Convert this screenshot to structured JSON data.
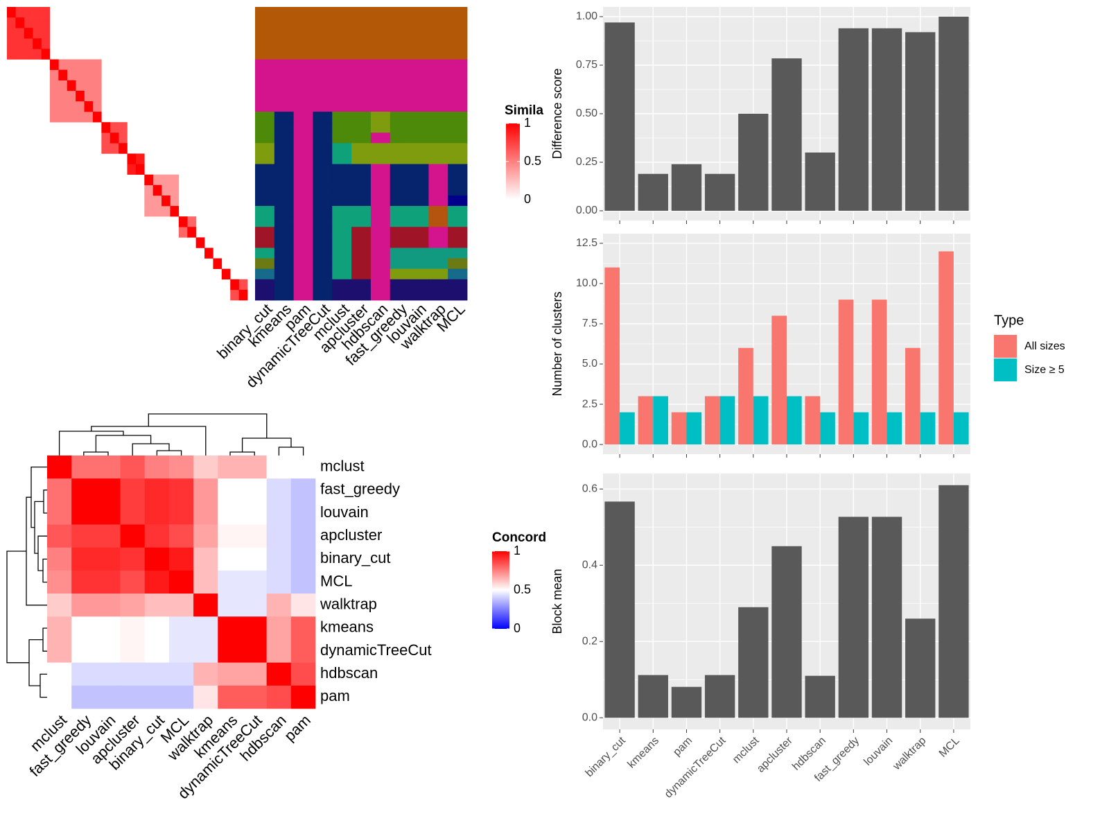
{
  "chart_data": [
    {
      "type": "similarity_heatmap",
      "size": 28,
      "diagonal": 1,
      "blocks": [
        {
          "start": 0,
          "end": 4,
          "value": 0.8
        },
        {
          "start": 5,
          "end": 10,
          "value": 0.5
        },
        {
          "start": 11,
          "end": 13,
          "value": 0.7
        },
        {
          "start": 14,
          "end": 15,
          "value": 0.9
        },
        {
          "start": 16,
          "end": 19,
          "value": 0.4
        },
        {
          "start": 20,
          "end": 21,
          "value": 0.6
        },
        {
          "start": 26,
          "end": 27,
          "value": 0.7
        }
      ],
      "colors": [
        "#ffffff",
        "#ff0000"
      ],
      "legend_title": "Simila",
      "legend_ticks": [
        1,
        0.5,
        0
      ]
    },
    {
      "type": "cluster_matrix",
      "methods": [
        "binary_cut",
        "kmeans",
        "pam",
        "dynamicTreeCut",
        "mclust",
        "apcluster",
        "hdbscan",
        "fast_greedy",
        "louvain",
        "walktrap",
        "MCL"
      ],
      "palette": [
        "#b35806",
        "#d4148c",
        "#4d8a0a",
        "#06236e",
        "#7f9c0e",
        "#0fa27a",
        "#00008b",
        "#b5540e",
        "#a01428",
        "#129a80",
        "#6b7a12",
        "#176b8a",
        "#1d0f6e"
      ],
      "rows": [
        [
          0,
          0,
          0,
          0,
          0,
          0,
          0,
          0,
          0,
          0,
          0
        ],
        [
          0,
          0,
          0,
          0,
          0,
          0,
          0,
          0,
          0,
          0,
          0
        ],
        [
          0,
          0,
          0,
          0,
          0,
          0,
          0,
          0,
          0,
          0,
          0
        ],
        [
          0,
          0,
          0,
          0,
          0,
          0,
          0,
          0,
          0,
          0,
          0
        ],
        [
          0,
          0,
          0,
          0,
          0,
          0,
          0,
          0,
          0,
          0,
          0
        ],
        [
          1,
          1,
          1,
          1,
          1,
          1,
          1,
          1,
          1,
          1,
          1
        ],
        [
          1,
          1,
          1,
          1,
          1,
          1,
          1,
          1,
          1,
          1,
          1
        ],
        [
          1,
          1,
          1,
          1,
          1,
          1,
          1,
          1,
          1,
          1,
          1
        ],
        [
          1,
          1,
          1,
          1,
          1,
          1,
          1,
          1,
          1,
          1,
          1
        ],
        [
          1,
          1,
          1,
          1,
          1,
          1,
          1,
          1,
          1,
          1,
          1
        ],
        [
          2,
          3,
          1,
          3,
          2,
          2,
          4,
          2,
          2,
          2,
          2
        ],
        [
          2,
          3,
          1,
          3,
          2,
          2,
          4,
          2,
          2,
          2,
          2
        ],
        [
          2,
          3,
          1,
          3,
          2,
          2,
          1,
          2,
          2,
          2,
          2
        ],
        [
          4,
          3,
          1,
          3,
          5,
          4,
          4,
          4,
          4,
          4,
          4
        ],
        [
          4,
          3,
          1,
          3,
          5,
          4,
          4,
          4,
          4,
          4,
          4
        ],
        [
          3,
          3,
          1,
          3,
          3,
          3,
          1,
          3,
          3,
          1,
          3
        ],
        [
          3,
          3,
          1,
          3,
          3,
          3,
          1,
          3,
          3,
          1,
          3
        ],
        [
          3,
          3,
          1,
          3,
          3,
          3,
          1,
          3,
          3,
          1,
          3
        ],
        [
          3,
          3,
          1,
          3,
          3,
          3,
          1,
          3,
          3,
          1,
          6
        ],
        [
          5,
          3,
          1,
          3,
          5,
          5,
          1,
          5,
          5,
          7,
          5
        ],
        [
          5,
          3,
          1,
          3,
          5,
          5,
          1,
          5,
          5,
          7,
          5
        ],
        [
          8,
          3,
          1,
          3,
          5,
          8,
          1,
          8,
          8,
          1,
          8
        ],
        [
          8,
          3,
          1,
          3,
          5,
          8,
          1,
          8,
          8,
          1,
          8
        ],
        [
          5,
          3,
          1,
          3,
          5,
          8,
          1,
          9,
          9,
          9,
          9
        ],
        [
          10,
          3,
          1,
          3,
          5,
          8,
          1,
          9,
          9,
          9,
          10
        ],
        [
          11,
          3,
          1,
          3,
          5,
          8,
          1,
          4,
          4,
          4,
          11
        ],
        [
          12,
          3,
          1,
          3,
          12,
          12,
          1,
          12,
          12,
          12,
          12
        ],
        [
          12,
          3,
          1,
          3,
          12,
          12,
          1,
          12,
          12,
          12,
          12
        ]
      ]
    },
    {
      "type": "concordance_heatmap",
      "labels": [
        "mclust",
        "fast_greedy",
        "louvain",
        "apcluster",
        "binary_cut",
        "MCL",
        "walktrap",
        "kmeans",
        "dynamicTreeCut",
        "hdbscan",
        "pam"
      ],
      "values": [
        [
          1,
          0.78,
          0.78,
          0.83,
          0.75,
          0.72,
          0.6,
          0.65,
          0.65,
          0.5,
          0.5
        ],
        [
          0.78,
          1,
          1,
          0.88,
          0.92,
          0.9,
          0.7,
          0.5,
          0.5,
          0.43,
          0.38
        ],
        [
          0.78,
          1,
          1,
          0.88,
          0.92,
          0.9,
          0.7,
          0.5,
          0.5,
          0.43,
          0.38
        ],
        [
          0.83,
          0.88,
          0.88,
          1,
          0.9,
          0.85,
          0.68,
          0.52,
          0.52,
          0.43,
          0.38
        ],
        [
          0.75,
          0.92,
          0.92,
          0.9,
          1,
          0.95,
          0.63,
          0.5,
          0.5,
          0.43,
          0.38
        ],
        [
          0.72,
          0.9,
          0.9,
          0.85,
          0.95,
          1,
          0.63,
          0.45,
          0.45,
          0.43,
          0.38
        ],
        [
          0.6,
          0.7,
          0.7,
          0.68,
          0.63,
          0.63,
          1,
          0.45,
          0.45,
          0.65,
          0.55
        ],
        [
          0.65,
          0.5,
          0.5,
          0.52,
          0.5,
          0.45,
          0.45,
          1,
          1,
          0.68,
          0.82
        ],
        [
          0.65,
          0.5,
          0.5,
          0.52,
          0.5,
          0.45,
          0.45,
          1,
          1,
          0.68,
          0.82
        ],
        [
          0.5,
          0.43,
          0.43,
          0.43,
          0.43,
          0.43,
          0.65,
          0.68,
          0.68,
          1,
          0.85
        ],
        [
          0.5,
          0.38,
          0.38,
          0.38,
          0.38,
          0.38,
          0.55,
          0.82,
          0.82,
          0.85,
          1
        ]
      ],
      "colors": [
        "#0000ff",
        "#ffffff",
        "#ff0000"
      ],
      "legend_title": "Concord",
      "legend_ticks": [
        1,
        0.5,
        0
      ]
    },
    {
      "type": "bar",
      "ylabel": "Difference score",
      "color": "#595959",
      "values": [
        0.97,
        0.19,
        0.24,
        0.19,
        0.5,
        0.785,
        0.3,
        0.94,
        0.94,
        0.92,
        1.0
      ],
      "ylim": [
        -0.05,
        1.05
      ],
      "yticks": [
        {
          "value": 0,
          "label": "0.00"
        },
        0.25,
        {
          "value": 0.5,
          "label": "0.50"
        },
        0.75,
        {
          "value": 1,
          "label": "1.00"
        }
      ],
      "grid": true
    },
    {
      "type": "grouped_bar",
      "ylabel": "Number of clusters",
      "series": [
        {
          "name": "All sizes",
          "color": "#f8766d",
          "values": [
            11,
            3,
            2,
            3,
            6,
            8,
            3,
            9,
            9,
            6,
            12
          ]
        },
        {
          "name": "Size ≥ 5",
          "color": "#00bfc4",
          "values": [
            2,
            3,
            2,
            3,
            3,
            3,
            2,
            2,
            2,
            2,
            2
          ]
        }
      ],
      "legend_title": "Type",
      "ylim": [
        -0.6,
        13.1
      ],
      "yticks": [
        {
          "value": 0,
          "label": "0.0"
        },
        2.5,
        {
          "value": 5,
          "label": "5.0"
        },
        7.5,
        {
          "value": 10,
          "label": "10.0"
        },
        12.5
      ],
      "grid": true
    },
    {
      "type": "bar",
      "ylabel": "Block mean",
      "color": "#595959",
      "categories": [
        "binary_cut",
        "kmeans",
        "pam",
        "dynamicTreeCut",
        "mclust",
        "apcluster",
        "hdbscan",
        "fast_greedy",
        "louvain",
        "walktrap",
        "MCL"
      ],
      "values": [
        0.567,
        0.112,
        0.081,
        0.112,
        0.29,
        0.45,
        0.11,
        0.527,
        0.527,
        0.26,
        0.61
      ],
      "ylim": [
        -0.0305,
        0.6405
      ],
      "yticks": [
        {
          "value": 0,
          "label": "0.0"
        },
        0.2,
        0.4,
        0.6
      ],
      "grid": true
    }
  ]
}
